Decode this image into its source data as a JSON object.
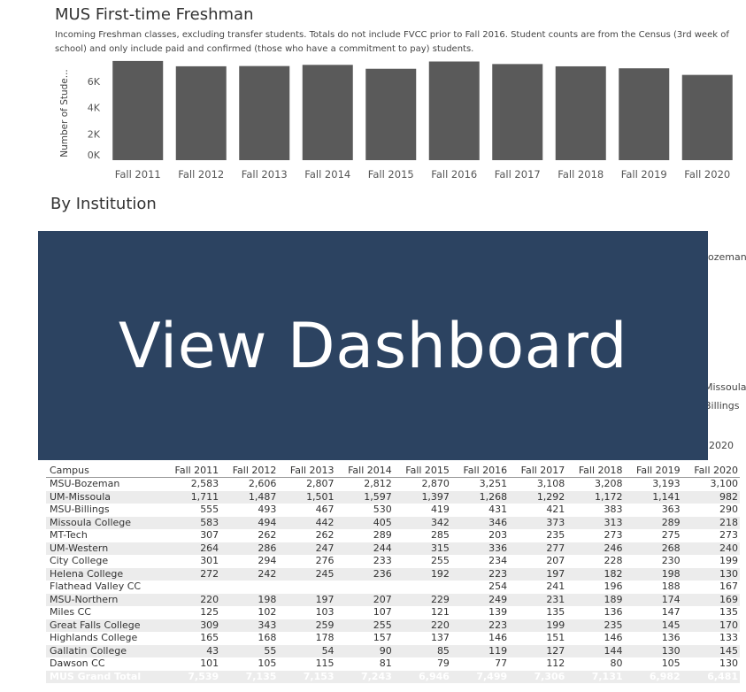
{
  "header": {
    "title": "MUS First-time Freshman",
    "subtitle": "Incoming Freshman classes, excluding transfer students.  Totals do not include FVCC prior to Fall 2016.  Student counts are from the Census (3rd week of school) and only include paid and confirmed (those who have a commitment to pay) students."
  },
  "chart_data": {
    "type": "bar",
    "categories": [
      "Fall 2011",
      "Fall 2012",
      "Fall 2013",
      "Fall 2014",
      "Fall 2015",
      "Fall 2016",
      "Fall 2017",
      "Fall 2018",
      "Fall 2019",
      "Fall 2020"
    ],
    "values": [
      7539,
      7135,
      7153,
      7243,
      6946,
      7499,
      7306,
      7131,
      6982,
      6481
    ],
    "ylabel": "Number of Stude...",
    "ytick_labels": [
      "0K",
      "2K",
      "4K",
      "6K"
    ],
    "yticks": [
      0,
      2000,
      4000,
      6000
    ],
    "ylim": [
      0,
      7600
    ],
    "grid": false,
    "bar_color": "#5a5a5a"
  },
  "section_title": "By Institution",
  "partial_labels": {
    "bozeman": "ozeman",
    "missoula": "Missoula",
    "billings": "Billings",
    "year": "2020"
  },
  "banner": {
    "label": "View Dashboard",
    "color": "#2c4361"
  },
  "table": {
    "columns": [
      "Campus",
      "Fall 2011",
      "Fall 2012",
      "Fall 2013",
      "Fall 2014",
      "Fall 2015",
      "Fall 2016",
      "Fall 2017",
      "Fall 2018",
      "Fall 2019",
      "Fall 2020"
    ],
    "rows": [
      [
        "MSU-Bozeman",
        "2,583",
        "2,606",
        "2,807",
        "2,812",
        "2,870",
        "3,251",
        "3,108",
        "3,208",
        "3,193",
        "3,100"
      ],
      [
        "UM-Missoula",
        "1,711",
        "1,487",
        "1,501",
        "1,597",
        "1,397",
        "1,268",
        "1,292",
        "1,172",
        "1,141",
        "982"
      ],
      [
        "MSU-Billings",
        "555",
        "493",
        "467",
        "530",
        "419",
        "431",
        "421",
        "383",
        "363",
        "290"
      ],
      [
        "Missoula College",
        "583",
        "494",
        "442",
        "405",
        "342",
        "346",
        "373",
        "313",
        "289",
        "218"
      ],
      [
        "MT-Tech",
        "307",
        "262",
        "262",
        "289",
        "285",
        "203",
        "235",
        "273",
        "275",
        "273"
      ],
      [
        "UM-Western",
        "264",
        "286",
        "247",
        "244",
        "315",
        "336",
        "277",
        "246",
        "268",
        "240"
      ],
      [
        "City College",
        "301",
        "294",
        "276",
        "233",
        "255",
        "234",
        "207",
        "228",
        "230",
        "199"
      ],
      [
        "Helena College",
        "272",
        "242",
        "245",
        "236",
        "192",
        "223",
        "197",
        "182",
        "198",
        "130"
      ],
      [
        "Flathead Valley CC",
        "",
        "",
        "",
        "",
        "",
        "254",
        "241",
        "196",
        "188",
        "167"
      ],
      [
        "MSU-Northern",
        "220",
        "198",
        "197",
        "207",
        "229",
        "249",
        "231",
        "189",
        "174",
        "169"
      ],
      [
        "Miles CC",
        "125",
        "102",
        "103",
        "107",
        "121",
        "139",
        "135",
        "136",
        "147",
        "135"
      ],
      [
        "Great Falls College",
        "309",
        "343",
        "259",
        "255",
        "220",
        "223",
        "199",
        "235",
        "145",
        "170"
      ],
      [
        "Highlands College",
        "165",
        "168",
        "178",
        "157",
        "137",
        "146",
        "151",
        "146",
        "136",
        "133"
      ],
      [
        "Gallatin College",
        "43",
        "55",
        "54",
        "90",
        "85",
        "119",
        "127",
        "144",
        "130",
        "145"
      ],
      [
        "Dawson CC",
        "101",
        "105",
        "115",
        "81",
        "79",
        "77",
        "112",
        "80",
        "105",
        "130"
      ]
    ],
    "total": [
      "MUS Grand Total",
      "7,539",
      "7,135",
      "7,153",
      "7,243",
      "6,946",
      "7,499",
      "7,306",
      "7,131",
      "6,982",
      "6,481"
    ]
  }
}
